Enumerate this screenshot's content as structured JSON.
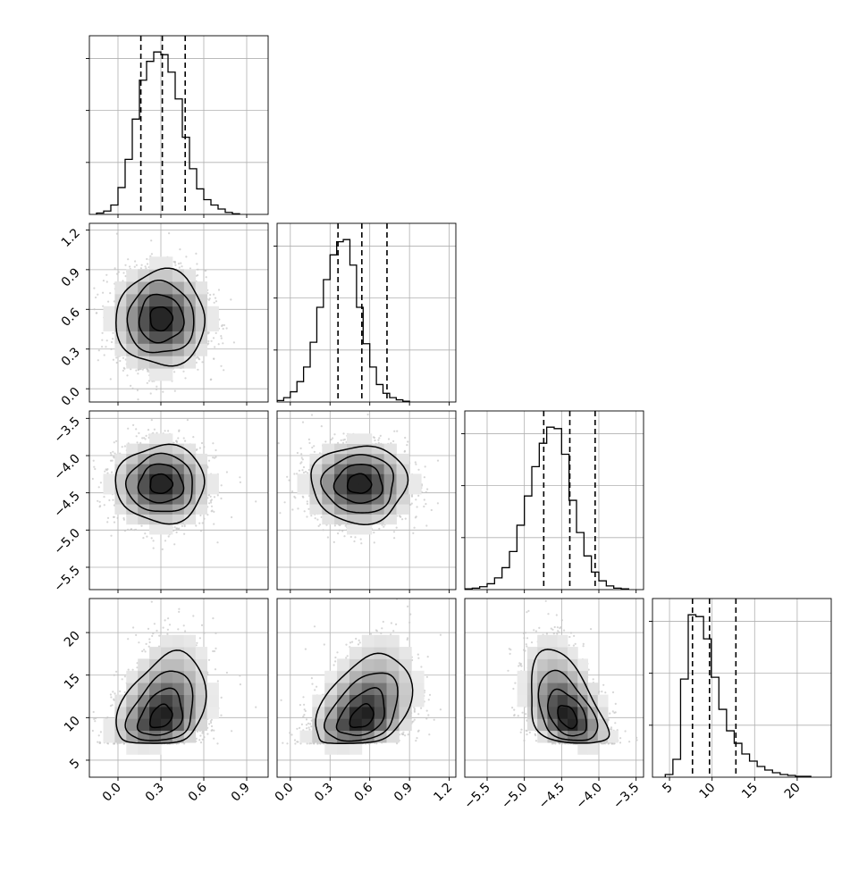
{
  "chart_data": {
    "type": "corner",
    "grid": true,
    "parameters": [
      {
        "range": [
          -0.2,
          1.05
        ],
        "ticks": [
          0.0,
          0.3,
          0.6,
          0.9
        ],
        "tick_labels": [
          "0.0",
          "0.3",
          "0.6",
          "0.9"
        ],
        "quantiles": [
          0.16,
          0.31,
          0.47
        ],
        "histogram": {
          "bin_start": -0.15,
          "bin_width": 0.05,
          "counts": [
            2,
            5,
            14,
            40,
            82,
            142,
            200,
            228,
            242,
            238,
            212,
            172,
            115,
            68,
            38,
            22,
            14,
            8,
            3,
            1
          ]
        }
      },
      {
        "range": [
          -0.1,
          1.25
        ],
        "ticks": [
          0.0,
          0.3,
          0.6,
          0.9,
          1.2
        ],
        "tick_labels": [
          "0.0",
          "0.3",
          "0.6",
          "0.9",
          "1.2"
        ],
        "quantiles": [
          0.36,
          0.54,
          0.73
        ],
        "histogram": {
          "bin_start": -0.1,
          "bin_width": 0.05,
          "counts": [
            2,
            6,
            14,
            28,
            48,
            82,
            130,
            168,
            202,
            220,
            223,
            188,
            130,
            80,
            48,
            24,
            12,
            6,
            3,
            1
          ]
        }
      },
      {
        "range": [
          -5.8,
          -3.4
        ],
        "ticks": [
          -5.5,
          -5.0,
          -4.5,
          -4.0,
          -3.5
        ],
        "tick_labels": [
          "−5.5",
          "−5.0",
          "−4.5",
          "−4.0",
          "−3.5"
        ],
        "quantiles": [
          -4.74,
          -4.39,
          -4.05
        ],
        "histogram": {
          "bin_start": -5.8,
          "bin_width": 0.1,
          "counts": [
            1,
            2,
            4,
            8,
            16,
            30,
            52,
            88,
            128,
            168,
            200,
            222,
            220,
            185,
            122,
            78,
            46,
            24,
            12,
            5,
            2,
            1
          ]
        }
      },
      {
        "range": [
          3,
          24
        ],
        "ticks": [
          5,
          10,
          15,
          20
        ],
        "tick_labels": [
          "5",
          "10",
          "15",
          "20"
        ],
        "quantiles": [
          7.7,
          9.7,
          12.8
        ],
        "histogram": {
          "bin_start": 4.5,
          "bin_width": 0.9,
          "counts": [
            3,
            20,
            110,
            182,
            180,
            155,
            112,
            76,
            52,
            38,
            26,
            18,
            12,
            8,
            5,
            3,
            2,
            1,
            1
          ]
        }
      }
    ],
    "pairs": [
      {
        "row": 1,
        "col": 0,
        "mean": [
          0.3,
          0.53
        ],
        "sd": [
          0.155,
          0.18
        ],
        "rho": 0.0
      },
      {
        "row": 2,
        "col": 0,
        "mean": [
          0.3,
          -4.38
        ],
        "sd": [
          0.155,
          0.26
        ],
        "rho": 0.0
      },
      {
        "row": 2,
        "col": 1,
        "mean": [
          0.52,
          -4.38
        ],
        "sd": [
          0.18,
          0.26
        ],
        "rho": 0.0
      },
      {
        "row": 3,
        "col": 0,
        "mean": [
          0.3,
          10.6
        ],
        "sd": [
          0.155,
          2.7
        ],
        "rho": 0.3,
        "skew": true
      },
      {
        "row": 3,
        "col": 1,
        "mean": [
          0.54,
          10.6
        ],
        "sd": [
          0.18,
          2.7
        ],
        "rho": 0.38,
        "skew": true
      },
      {
        "row": 3,
        "col": 2,
        "mean": [
          -4.42,
          10.6
        ],
        "sd": [
          0.26,
          2.7
        ],
        "rho": -0.42,
        "skew": true
      }
    ],
    "contour_levels_sigma": [
      0.5,
      1.0,
      1.5,
      2.0
    ]
  }
}
